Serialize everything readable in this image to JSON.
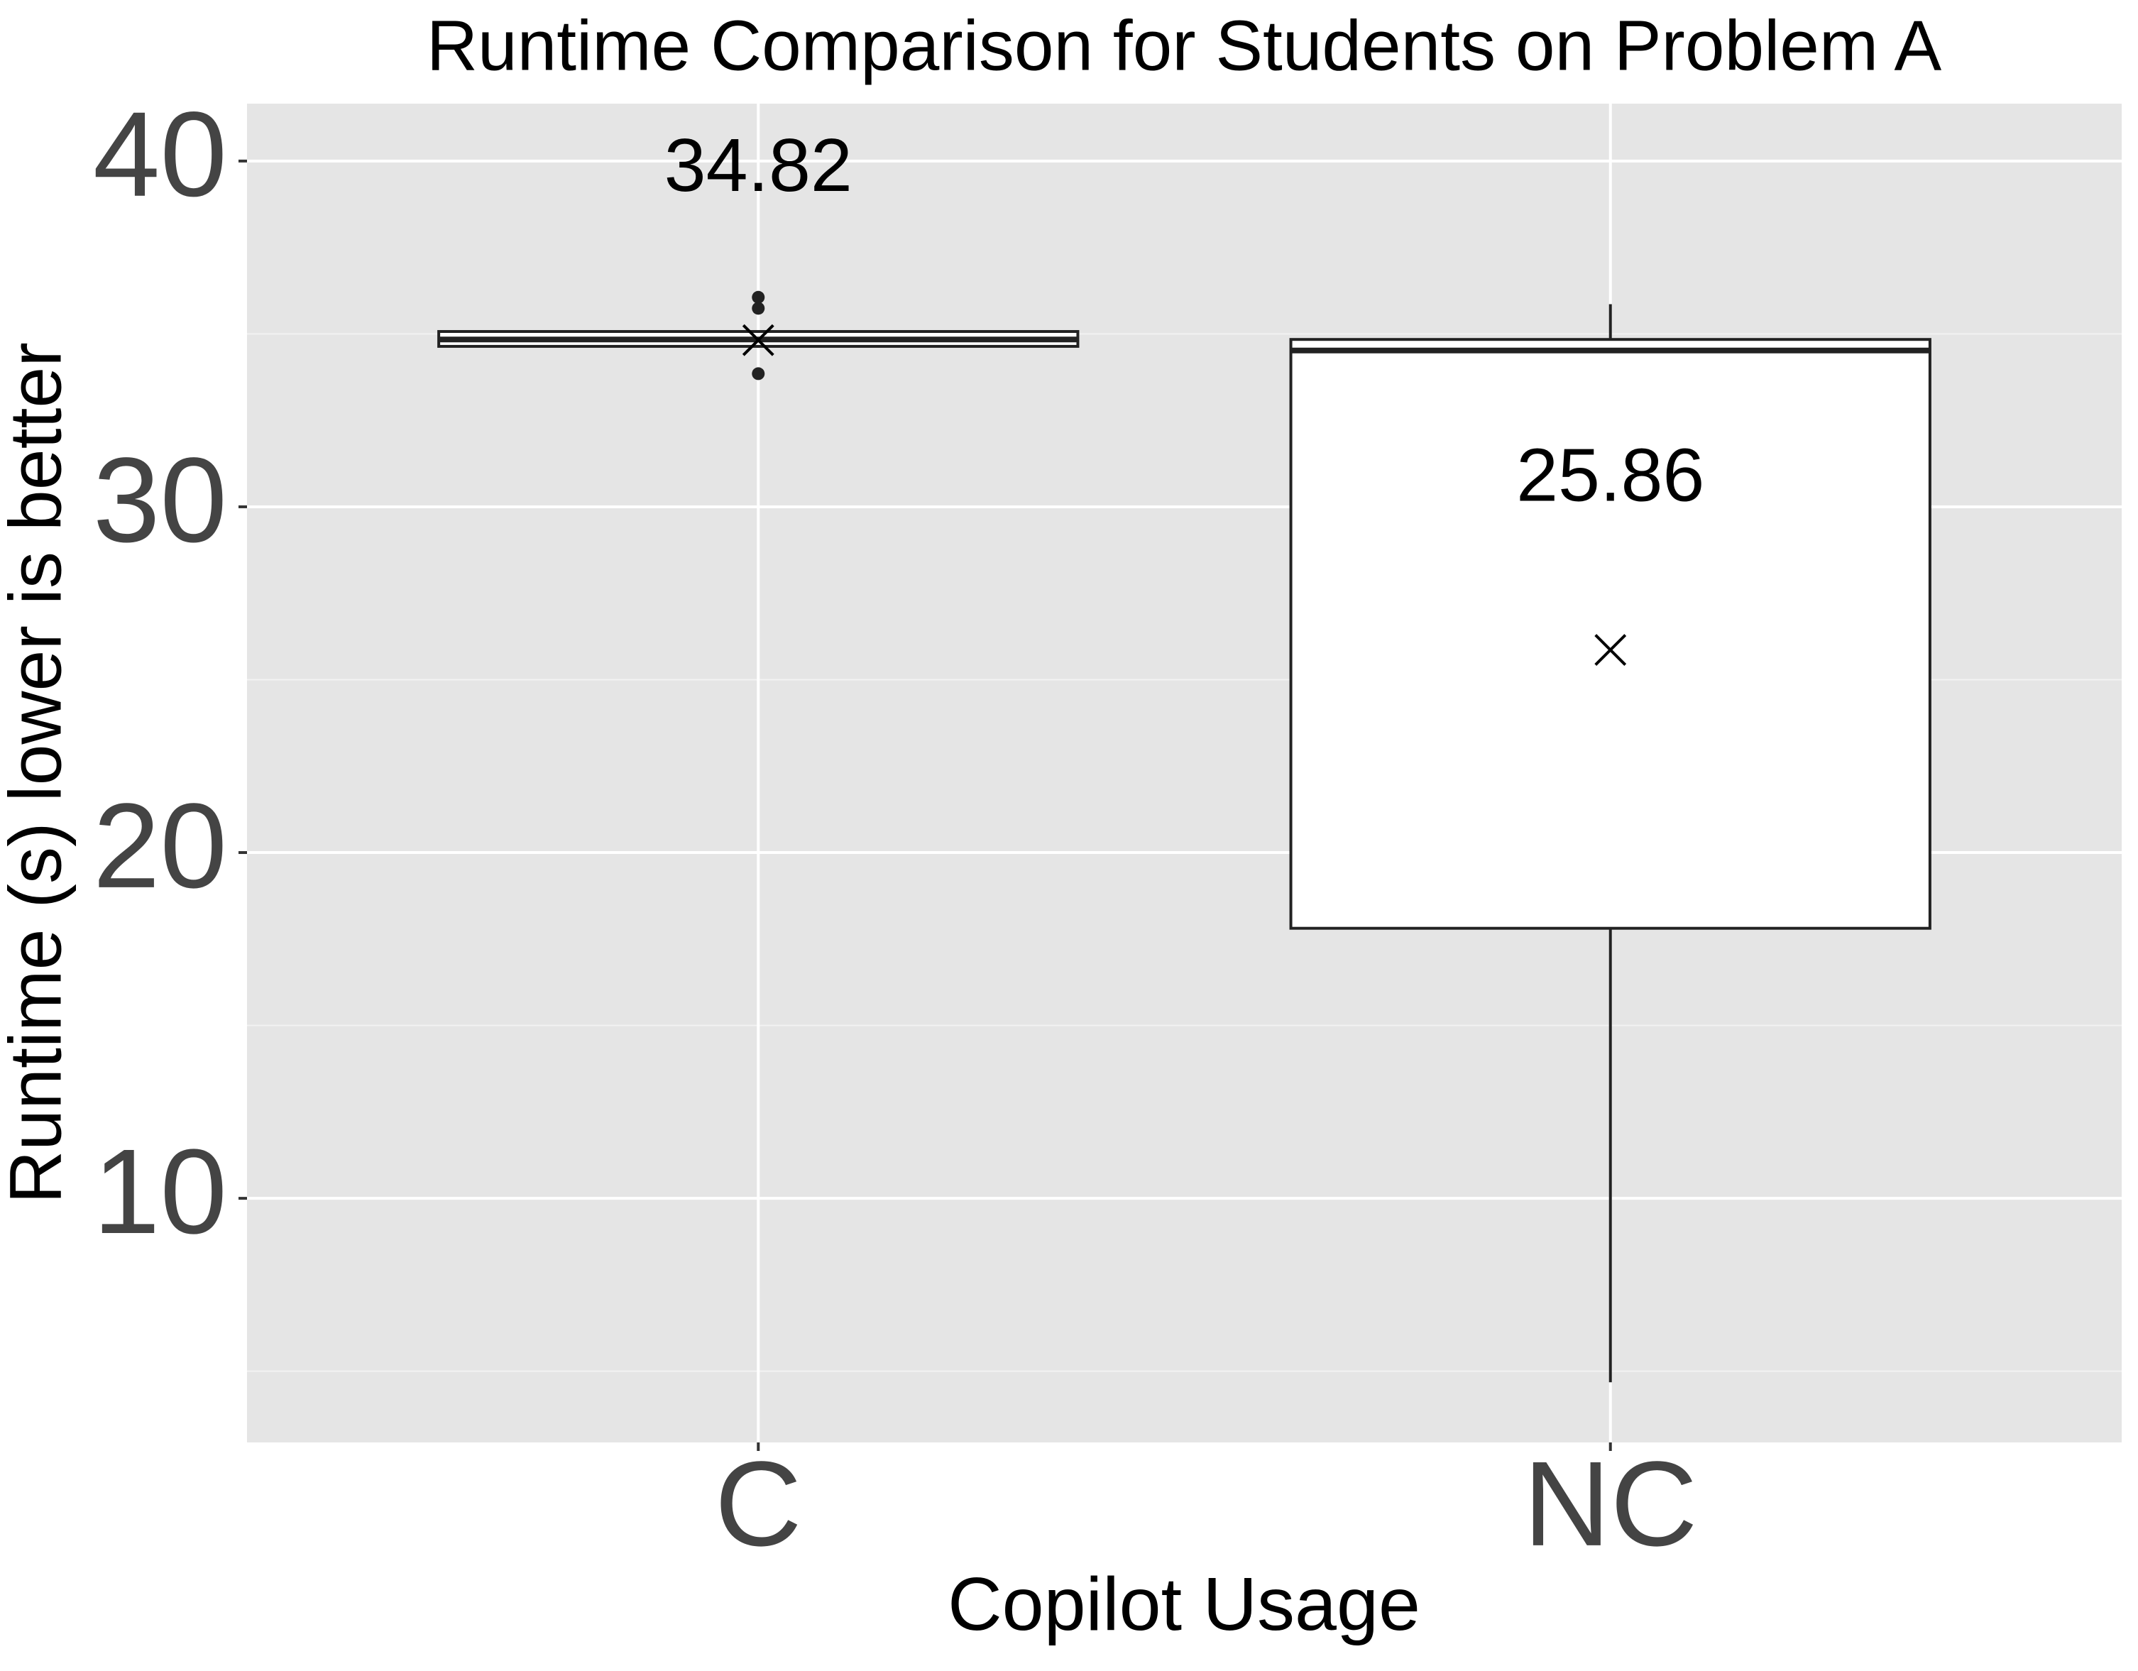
{
  "chart_data": {
    "type": "box",
    "title": "Runtime Comparison for Students on Problem A",
    "x_label": "Copilot Usage",
    "y_label": "Runtime (s) lower is better",
    "categories": [
      "C",
      "NC"
    ],
    "series": [
      {
        "name": "C",
        "whisker_low": 34.6,
        "q1": 34.64,
        "median": 34.84,
        "q3": 35.07,
        "whisker_high": 35.1,
        "mean": 34.82,
        "outliers": [
          36.06,
          35.74,
          33.85
        ]
      },
      {
        "name": "NC",
        "whisker_low": 4.68,
        "q1": 17.81,
        "median": 34.52,
        "q3": 34.84,
        "whisker_high": 35.86,
        "mean": 25.86,
        "outliers": []
      }
    ],
    "ylim": [
      2.94,
      41.66
    ],
    "yticks": [
      10,
      20,
      30,
      40
    ],
    "grid": true
  }
}
